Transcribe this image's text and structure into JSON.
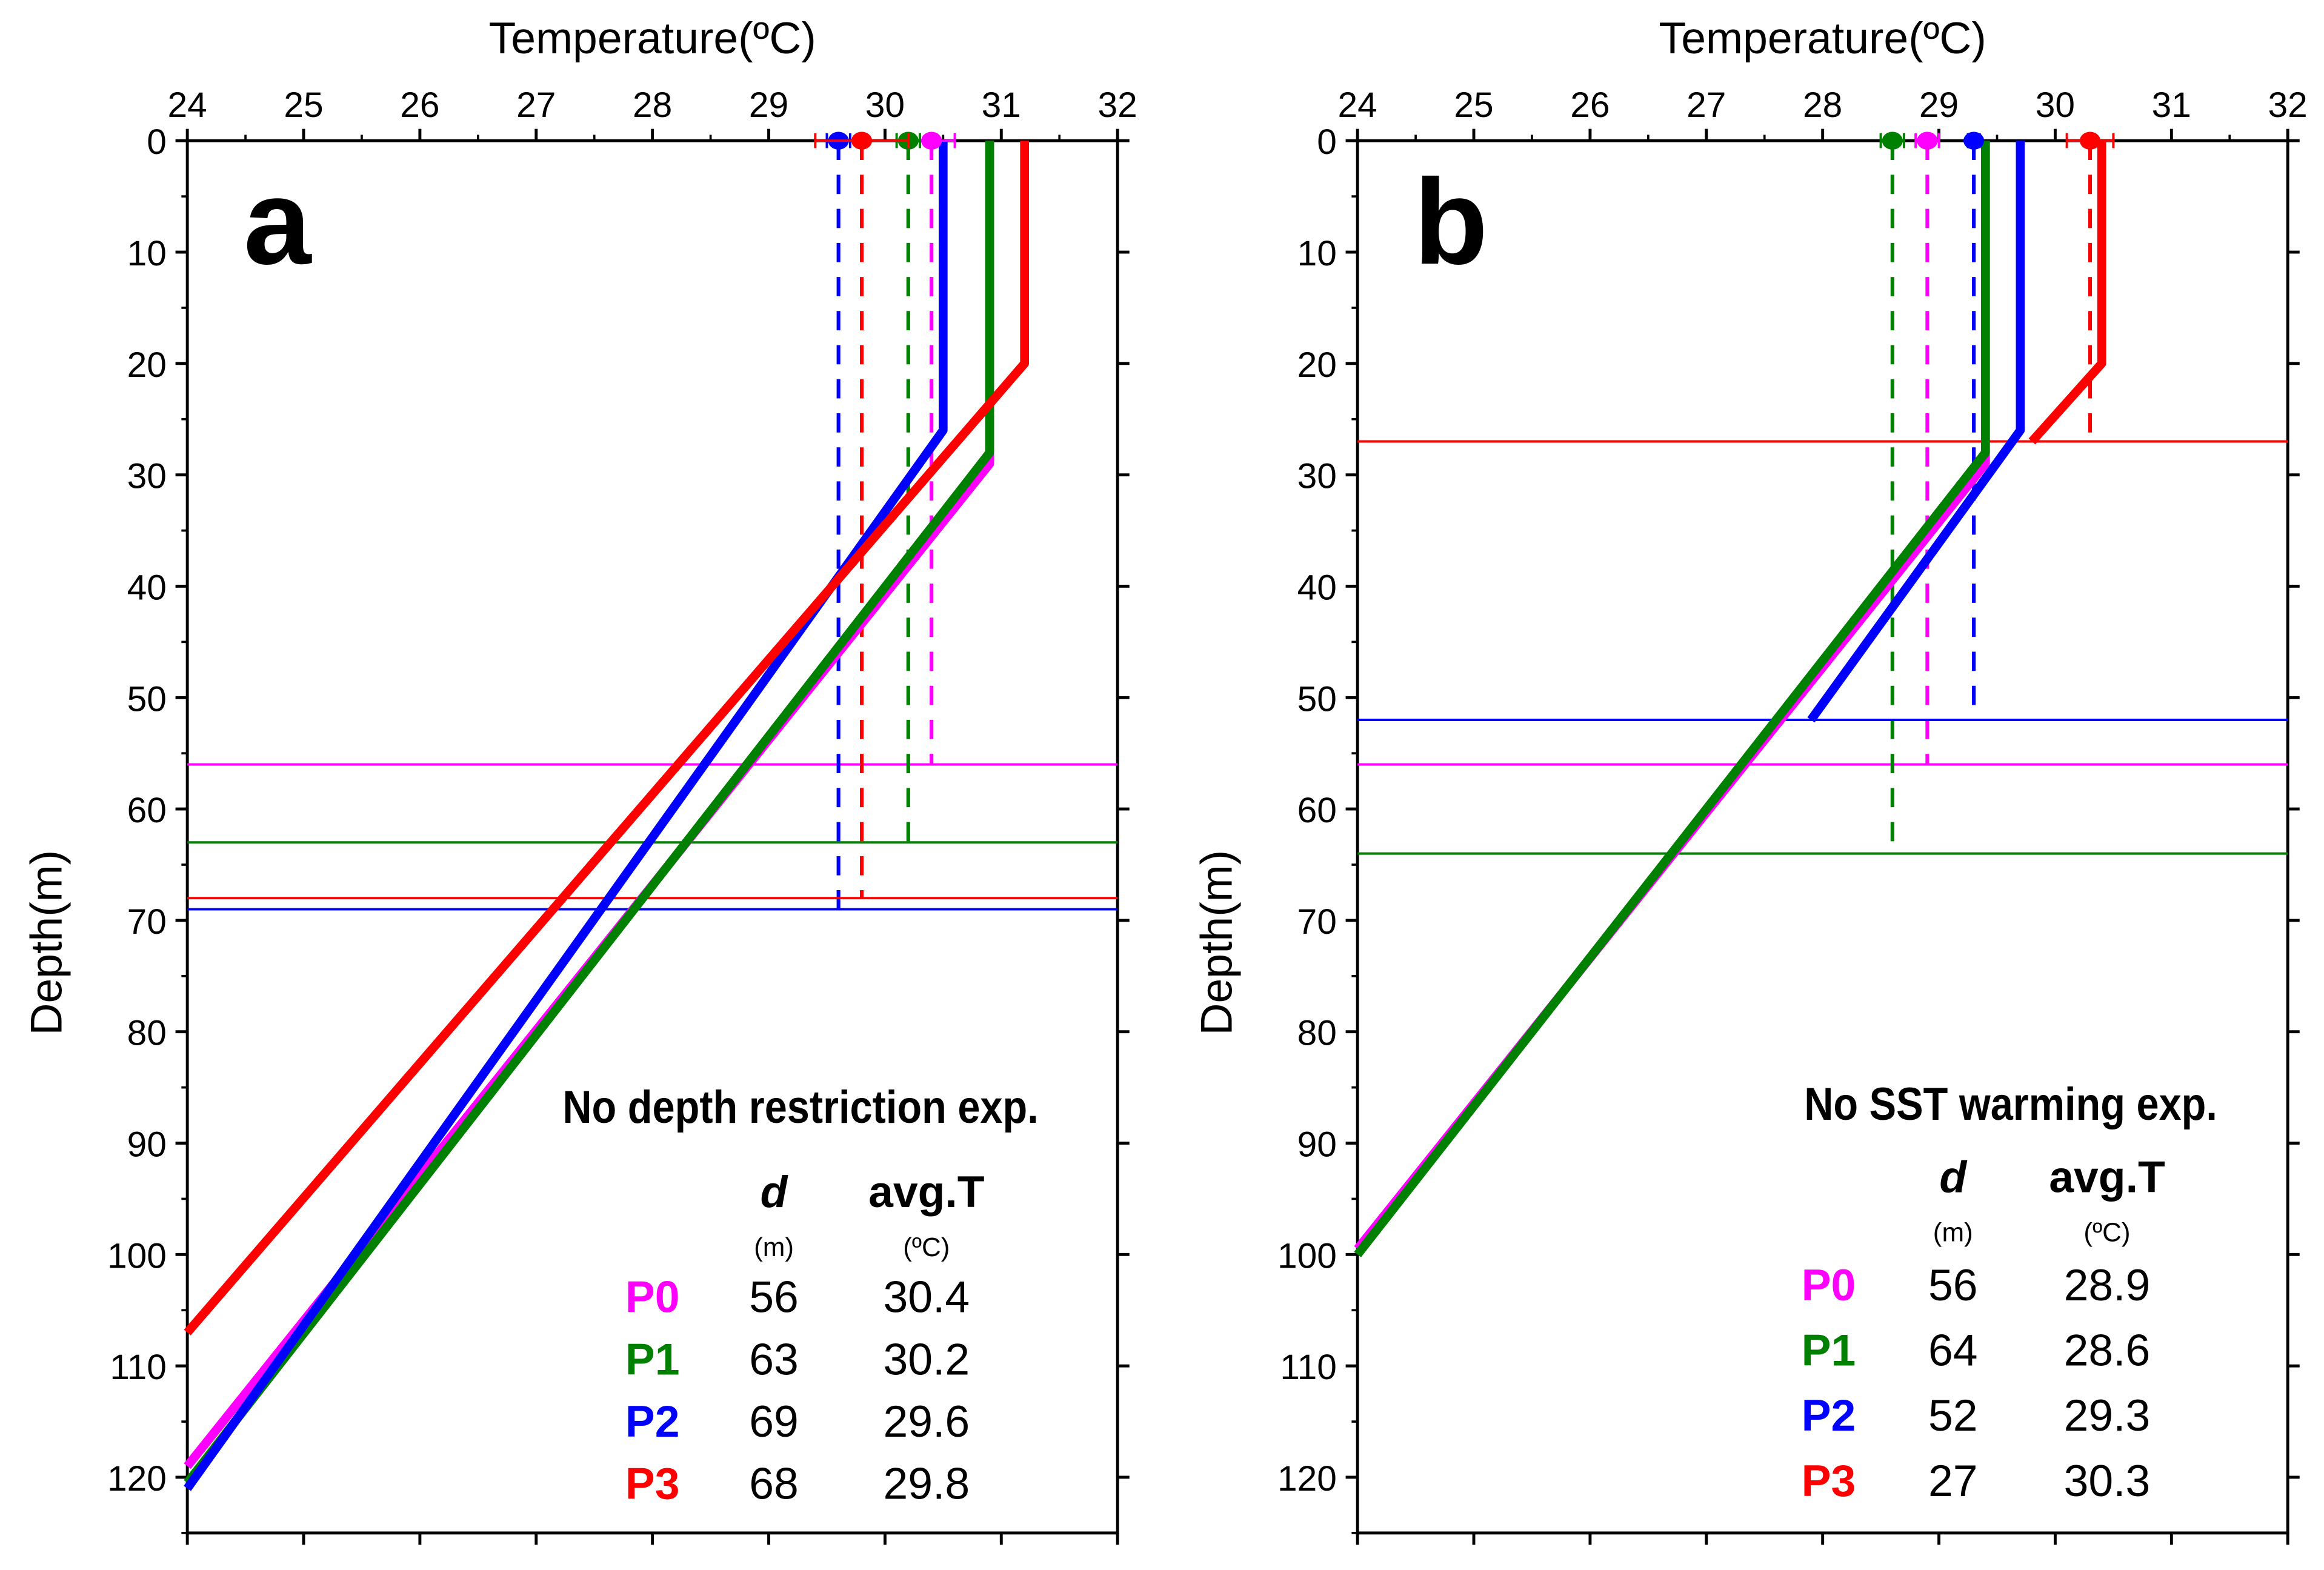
{
  "chart_data": [
    {
      "type": "line",
      "panel_label": "a",
      "title": "Temperature(ºC)",
      "xlabel": "Temperature(ºC)",
      "ylabel": "Depth(m)",
      "xlim": [
        24,
        32
      ],
      "ylim": [
        0,
        125
      ],
      "xticks": [
        24,
        25,
        26,
        27,
        28,
        29,
        30,
        31,
        32
      ],
      "yticks": [
        0,
        10,
        20,
        30,
        40,
        50,
        60,
        70,
        80,
        90,
        100,
        110,
        120
      ],
      "annotation": "No depth restriction exp.",
      "table_headers": {
        "d": "d",
        "d_unit": "(m)",
        "t": "avg.T",
        "t_unit": "(ºC)"
      },
      "series": [
        {
          "name": "P0",
          "color": "#ff00ff",
          "profile": [
            [
              30.9,
              0
            ],
            [
              30.9,
              29
            ],
            [
              24,
              119
            ]
          ],
          "d": 56,
          "avgT": 30.4,
          "err": 0.2
        },
        {
          "name": "P1",
          "color": "#008000",
          "profile": [
            [
              30.9,
              0
            ],
            [
              30.9,
              28
            ],
            [
              24,
              120.5
            ]
          ],
          "d": 63,
          "avgT": 30.2,
          "err": 0.1
        },
        {
          "name": "P2",
          "color": "#0000ff",
          "profile": [
            [
              30.5,
              0
            ],
            [
              30.5,
              26
            ],
            [
              24,
              121
            ]
          ],
          "d": 69,
          "avgT": 29.6,
          "err": 0.1
        },
        {
          "name": "P3",
          "color": "#ff0000",
          "profile": [
            [
              31.2,
              0
            ],
            [
              31.2,
              20
            ],
            [
              24,
              107
            ]
          ],
          "d": 68,
          "avgT": 29.8,
          "err": 0.4
        }
      ]
    },
    {
      "type": "line",
      "panel_label": "b",
      "title": "Temperature(ºC)",
      "xlabel": "Temperature(ºC)",
      "ylabel": "Depth(m)",
      "xlim": [
        24,
        32
      ],
      "ylim": [
        0,
        125
      ],
      "xticks": [
        24,
        25,
        26,
        27,
        28,
        29,
        30,
        31,
        32
      ],
      "yticks": [
        0,
        10,
        20,
        30,
        40,
        50,
        60,
        70,
        80,
        90,
        100,
        110,
        120
      ],
      "annotation": "No SST warming exp.",
      "table_headers": {
        "d": "d",
        "d_unit": "(m)",
        "t": "avg.T",
        "t_unit": "(ºC)"
      },
      "series": [
        {
          "name": "P0",
          "color": "#ff00ff",
          "profile": [
            [
              29.4,
              0
            ],
            [
              29.4,
              29
            ],
            [
              24,
              99.5
            ]
          ],
          "d": 56,
          "avgT": 28.9,
          "err": 0.1
        },
        {
          "name": "P1",
          "color": "#008000",
          "profile": [
            [
              29.4,
              0
            ],
            [
              29.4,
              28
            ],
            [
              24,
              100
            ]
          ],
          "d": 64,
          "avgT": 28.6,
          "err": 0.1
        },
        {
          "name": "P2",
          "color": "#0000ff",
          "profile": [
            [
              29.7,
              0
            ],
            [
              29.7,
              26
            ],
            [
              27.9,
              52
            ]
          ],
          "d": 52,
          "avgT": 29.3,
          "err": 0.05
        },
        {
          "name": "P3",
          "color": "#ff0000",
          "profile": [
            [
              30.4,
              0
            ],
            [
              30.4,
              20
            ],
            [
              29.8,
              27
            ]
          ],
          "d": 27,
          "avgT": 30.3,
          "err": 0.2
        }
      ]
    }
  ]
}
